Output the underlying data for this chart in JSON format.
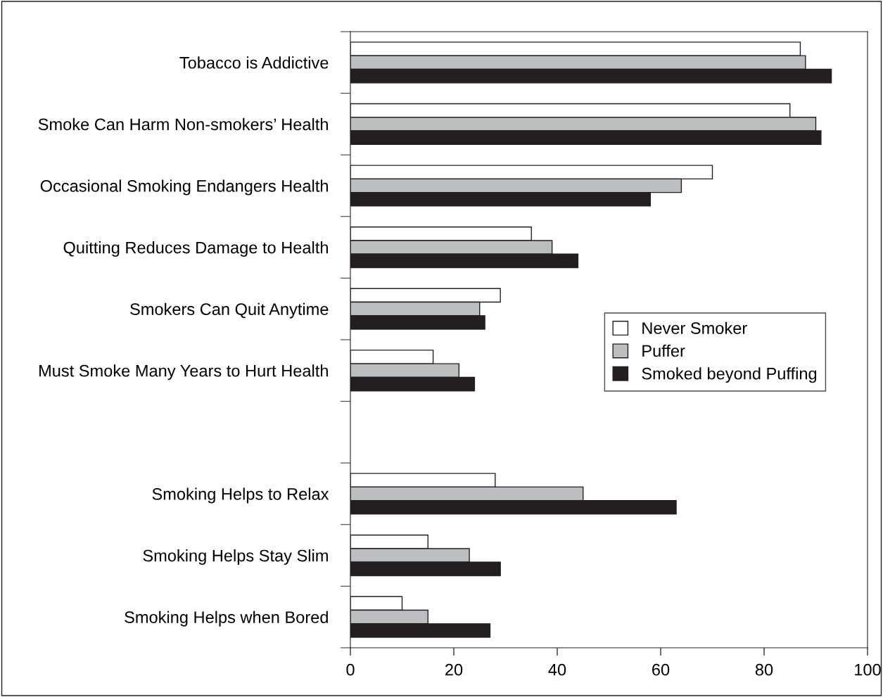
{
  "chart_data": {
    "type": "bar",
    "orientation": "horizontal",
    "categories": [
      "Tobacco is Addictive",
      "Smoke Can Harm Non-smokers’ Health",
      "Occasional Smoking Endangers Health",
      "Quitting Reduces Damage to Health",
      "Smokers Can Quit Anytime",
      "Must Smoke Many Years to Hurt Health",
      null,
      "Smoking Helps to Relax",
      "Smoking Helps Stay Slim",
      "Smoking Helps when Bored"
    ],
    "series": [
      {
        "name": "Never Smoker",
        "color": "#ffffff",
        "values": [
          87,
          85,
          70,
          35,
          29,
          16,
          null,
          28,
          15,
          10
        ]
      },
      {
        "name": "Puffer",
        "color": "#bcbec0",
        "values": [
          88,
          90,
          64,
          39,
          25,
          21,
          null,
          45,
          23,
          15
        ]
      },
      {
        "name": "Smoked beyond Puffing",
        "color": "#231f20",
        "values": [
          93,
          91,
          58,
          44,
          26,
          24,
          null,
          63,
          29,
          27
        ]
      }
    ],
    "xlim": [
      0,
      100
    ],
    "xticks": [
      0,
      20,
      40,
      60,
      80,
      100
    ],
    "grid": false,
    "legend": "right"
  }
}
